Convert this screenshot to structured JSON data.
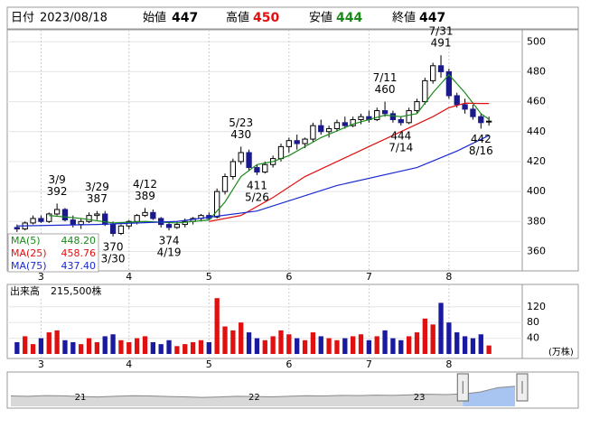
{
  "header": {
    "date_label": "日付",
    "date": "2023/08/18",
    "items": [
      {
        "label": "始値",
        "value": 447
      },
      {
        "label": "高値",
        "value": 450
      },
      {
        "label": "安値",
        "value": 444
      },
      {
        "label": "終値",
        "value": 447
      }
    ]
  },
  "chart_data": {
    "type": "candlestick",
    "up_color": "#ffffff",
    "down_color": "#1a1a8c",
    "outline_color": "#000000",
    "xlim": [
      -1,
      60
    ],
    "xticks": [
      {
        "value": 3,
        "label": "3"
      },
      {
        "value": 14,
        "label": "4"
      },
      {
        "value": 24,
        "label": "5"
      },
      {
        "value": 34,
        "label": "6"
      },
      {
        "value": 44,
        "label": "7"
      },
      {
        "value": 54,
        "label": "8"
      }
    ],
    "ylim": [
      347,
      508
    ],
    "yticks": [
      360,
      380,
      400,
      420,
      440,
      460,
      480,
      500
    ],
    "grid": true,
    "open": [
      376,
      375,
      379,
      382,
      380,
      385,
      388,
      381,
      378,
      380,
      384,
      385,
      378,
      372,
      377,
      380,
      384,
      386,
      382,
      378,
      376,
      378,
      380,
      382,
      384,
      383,
      400,
      410,
      420,
      426,
      416,
      413,
      418,
      422,
      430,
      434,
      432,
      435,
      444,
      440,
      442,
      446,
      444,
      448,
      450,
      448,
      454,
      452,
      448,
      446,
      454,
      460,
      474,
      484,
      480,
      464,
      458,
      455,
      450,
      447
    ],
    "high": [
      378,
      380,
      384,
      384,
      386,
      392,
      389,
      384,
      382,
      386,
      387,
      387,
      380,
      378,
      381,
      385,
      389,
      388,
      383,
      379,
      380,
      382,
      383,
      385,
      386,
      402,
      412,
      422,
      430,
      428,
      418,
      420,
      424,
      432,
      436,
      438,
      436,
      446,
      448,
      444,
      448,
      450,
      450,
      452,
      454,
      456,
      460,
      454,
      450,
      456,
      462,
      476,
      486,
      491,
      482,
      466,
      462,
      458,
      452,
      450
    ],
    "low": [
      373,
      374,
      378,
      379,
      379,
      384,
      380,
      376,
      375,
      379,
      381,
      377,
      370,
      371,
      375,
      378,
      383,
      381,
      376,
      374,
      375,
      376,
      378,
      380,
      381,
      382,
      398,
      408,
      418,
      414,
      411,
      412,
      416,
      420,
      426,
      428,
      429,
      433,
      438,
      436,
      440,
      442,
      443,
      445,
      446,
      447,
      450,
      446,
      444,
      445,
      452,
      458,
      472,
      476,
      462,
      456,
      452,
      448,
      442,
      444
    ],
    "close": [
      375,
      379,
      382,
      380,
      385,
      388,
      381,
      378,
      380,
      384,
      385,
      378,
      372,
      377,
      380,
      384,
      386,
      382,
      378,
      376,
      378,
      380,
      382,
      384,
      382,
      400,
      410,
      420,
      426,
      416,
      413,
      418,
      422,
      430,
      434,
      432,
      435,
      444,
      440,
      442,
      446,
      444,
      448,
      450,
      448,
      454,
      452,
      448,
      446,
      454,
      460,
      474,
      484,
      480,
      464,
      458,
      455,
      450,
      446,
      447
    ],
    "annotations": [
      {
        "date": "3/9",
        "value": 392,
        "x": 5
      },
      {
        "date": "3/29",
        "value": 387,
        "x": 10
      },
      {
        "date": "4/12",
        "value": 389,
        "x": 16
      },
      {
        "date": "3/30",
        "value": 370,
        "x": 12
      },
      {
        "date": "4/19",
        "value": 374,
        "x": 19
      },
      {
        "date": "5/23",
        "value": 430,
        "x": 28
      },
      {
        "date": "5/26",
        "value": 411,
        "x": 30
      },
      {
        "date": "7/11",
        "value": 460,
        "x": 46
      },
      {
        "date": "7/14",
        "value": 444,
        "x": 48
      },
      {
        "date": "7/31",
        "value": 491,
        "x": 53
      },
      {
        "date": "8/16",
        "value": 442,
        "x": 58
      }
    ],
    "series": [
      {
        "name": "MA(5)",
        "color": "#1a8a1a",
        "x": [
          4,
          8,
          12,
          16,
          20,
          24,
          26,
          28,
          30,
          32,
          34,
          38,
          42,
          46,
          48,
          50,
          52,
          54,
          56,
          58,
          59
        ],
        "values": [
          384,
          382,
          379,
          380,
          379,
          381,
          393,
          410,
          418,
          420,
          424,
          436,
          445,
          451,
          450,
          452,
          466,
          478,
          466,
          452,
          448.2
        ],
        "value_label": "448.20"
      },
      {
        "name": "MA(25)",
        "color": "#e01010",
        "x": [
          24,
          28,
          32,
          36,
          40,
          44,
          48,
          52,
          54,
          56,
          58,
          59
        ],
        "values": [
          380,
          384,
          396,
          410,
          420,
          430,
          440,
          450,
          456,
          459,
          458.8,
          458.76
        ],
        "value_label": "458.76"
      },
      {
        "name": "MA(75)",
        "color": "#1a2ad0",
        "x": [
          0,
          10,
          20,
          30,
          40,
          50,
          55,
          59
        ],
        "values": [
          377,
          378,
          380,
          387,
          404,
          416,
          427,
          437.4
        ],
        "value_label": "437.40"
      }
    ],
    "volume": {
      "label": "出来高",
      "last": "215,500株",
      "unit": "(万株)",
      "up_color": "#e01010",
      "down_color": "#1a1aa0",
      "ylim": [
        0,
        170
      ],
      "yticks": [
        40,
        80,
        120
      ],
      "values": [
        30,
        45,
        25,
        40,
        55,
        60,
        35,
        30,
        25,
        40,
        30,
        45,
        50,
        35,
        30,
        40,
        45,
        30,
        25,
        35,
        20,
        25,
        30,
        35,
        30,
        142,
        70,
        60,
        80,
        55,
        40,
        35,
        45,
        60,
        50,
        40,
        35,
        55,
        45,
        40,
        35,
        40,
        45,
        50,
        35,
        45,
        60,
        40,
        35,
        45,
        55,
        90,
        75,
        130,
        80,
        55,
        45,
        40,
        50,
        21.55
      ]
    },
    "navigator": {
      "xlim": [
        0,
        29
      ],
      "ylim": [
        300,
        520
      ],
      "selected_from": 26,
      "xticks": [
        {
          "value": 4,
          "label": "21"
        },
        {
          "value": 14,
          "label": "22"
        },
        {
          "value": 23.5,
          "label": "23"
        }
      ],
      "values": [
        372,
        370,
        375,
        373,
        368,
        365,
        370,
        374,
        372,
        368,
        366,
        362,
        365,
        370,
        368,
        366,
        370,
        374,
        372,
        376,
        375,
        378,
        376,
        380,
        384,
        382,
        386,
        400,
        430,
        440
      ]
    }
  }
}
